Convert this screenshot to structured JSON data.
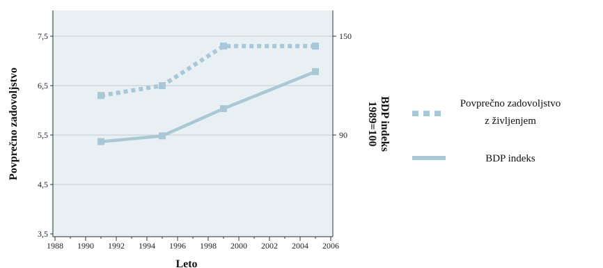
{
  "chart_data": {
    "type": "line",
    "xlabel": "Leto",
    "ylabel_left": "Povprečno zadovoljstvo",
    "ylabel_right": [
      "BDP indeks",
      "1989=100"
    ],
    "x_ticks": [
      "1988",
      "1990",
      "1992",
      "1994",
      "1996",
      "1998",
      "2000",
      "2002",
      "2004",
      "2006"
    ],
    "xlim": [
      1988,
      2006
    ],
    "y_left_ticks": [
      "3,5",
      "4,5",
      "5,5",
      "6,5",
      "7,5"
    ],
    "ylim_left": [
      3.5,
      7.5
    ],
    "y_right_ticks": [
      "90",
      "150"
    ],
    "ylim_right": [
      30,
      150
    ],
    "grid": "horizontal",
    "legend": "right",
    "series": [
      {
        "name": [
          "Povprečno zadovoljstvo",
          "z življenjem"
        ],
        "axis": "left",
        "style": "dotted",
        "color": "#a8c8d6",
        "x": [
          1991,
          1995,
          1999,
          2005
        ],
        "values": [
          6.3,
          6.5,
          7.3,
          7.3
        ]
      },
      {
        "name": [
          "BDP indeks"
        ],
        "axis": "right",
        "style": "solid",
        "color": "#a8c8d6",
        "x": [
          1991,
          1995,
          1999,
          2005
        ],
        "values": [
          86,
          89.5,
          106,
          128.5
        ]
      }
    ]
  }
}
